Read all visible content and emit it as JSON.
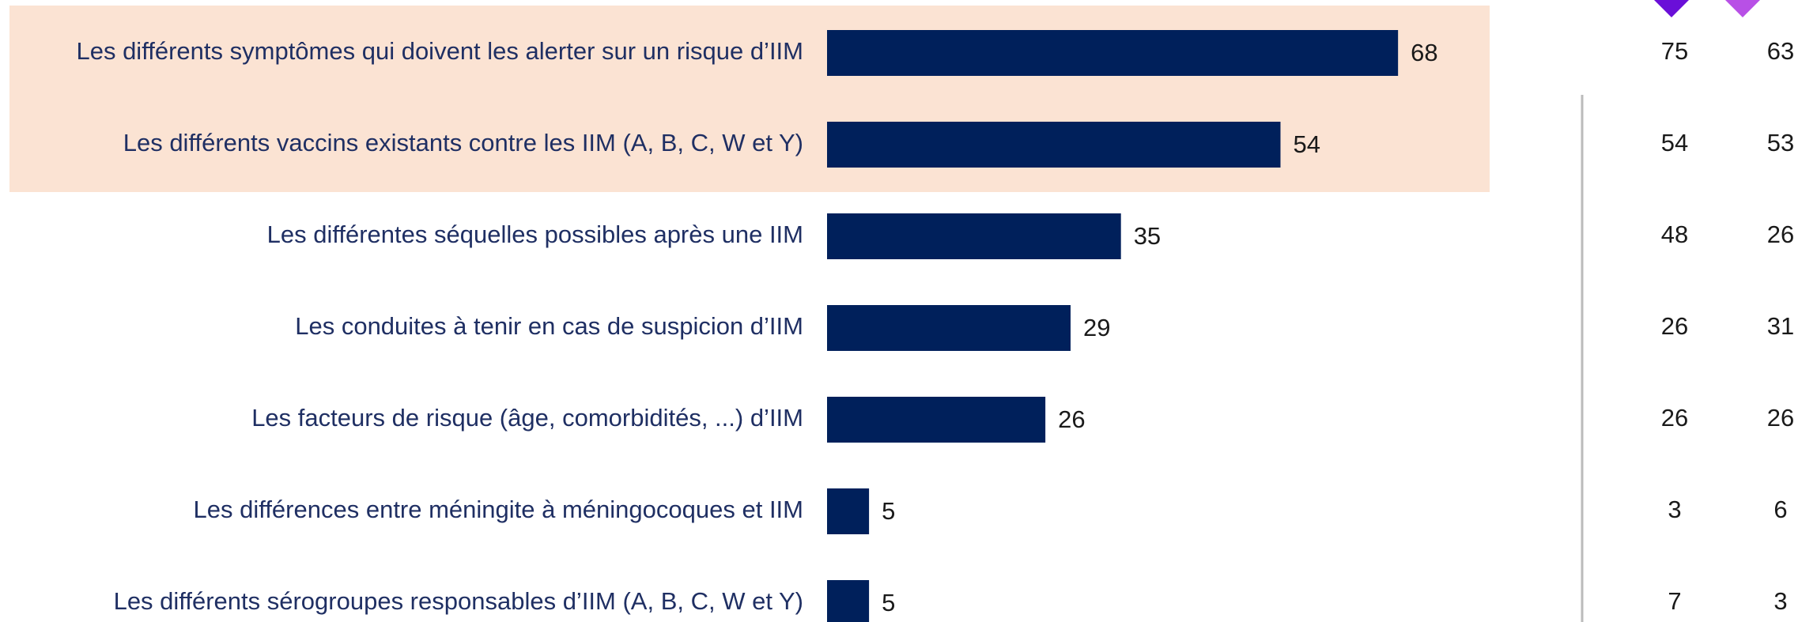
{
  "chart_data": {
    "type": "bar",
    "orientation": "horizontal",
    "categories": [
      "Les différents symptômes qui doivent les alerter sur un risque d’IIM",
      "Les différents vaccins existants contre les IIM (A, B, C, W et Y)",
      "Les différentes séquelles possibles après une IIM",
      "Les conduites à tenir en cas de suspicion d’IIM",
      "Les facteurs de risque (âge, comorbidités, ...) d’IIM",
      "Les différences entre méningite à méningocoques et IIM",
      "Les différents sérogroupes responsables d’IIM (A, B, C, W et Y)"
    ],
    "values": [
      68,
      54,
      35,
      29,
      26,
      5,
      5
    ],
    "color": "#00205b",
    "highlighted_rows": [
      0,
      1
    ],
    "highlight_color": "#fbe3d3",
    "columns": [
      {
        "color": "#6a0fd8",
        "values": [
          75,
          54,
          48,
          26,
          26,
          3,
          7
        ]
      },
      {
        "color": "#b850e6",
        "values": [
          63,
          53,
          26,
          31,
          26,
          6,
          3
        ]
      }
    ]
  }
}
